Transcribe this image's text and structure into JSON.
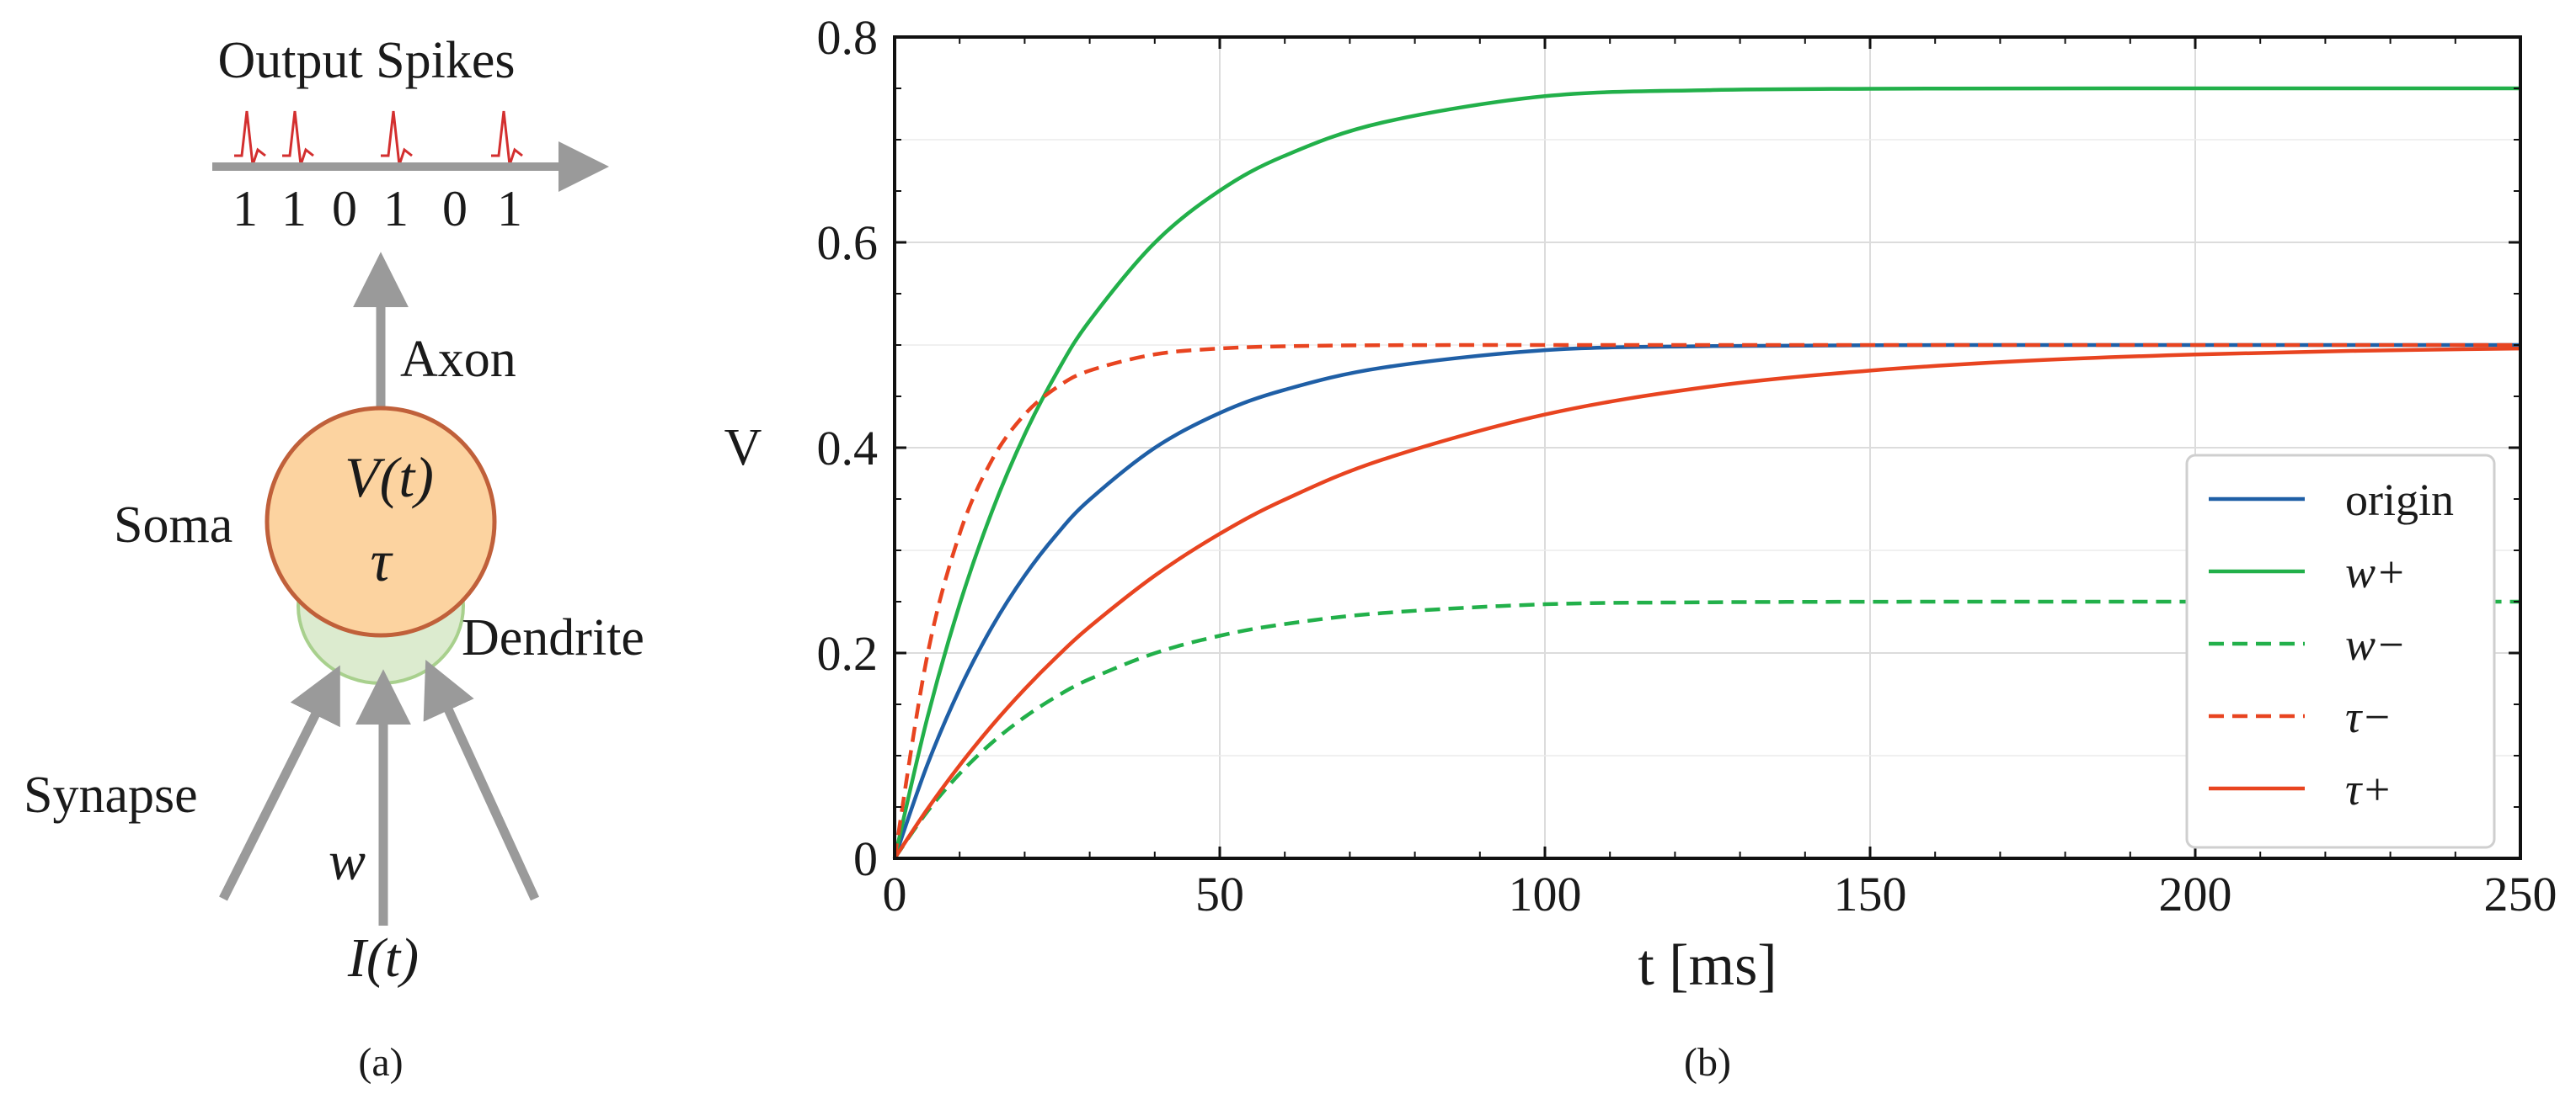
{
  "panel_a": {
    "caption": "(a)",
    "output_label": "Output Spikes",
    "spike_bits": [
      "1",
      "1",
      "0",
      "1",
      "0",
      "1"
    ],
    "axon_label": "Axon",
    "soma_label": "Soma",
    "soma_potential": "V(t)",
    "soma_tau": "τ",
    "dendrite_label": "Dendrite",
    "synapse_label": "Synapse",
    "weight_label": "w",
    "input_label": "I(t)",
    "colors": {
      "spike": "#d32f2f",
      "arrow": "#9a9a9a",
      "soma_fill": "#fcd3a0",
      "soma_stroke": "#c0603a",
      "dendrite_fill": "#dcebcf",
      "dendrite_stroke": "#a8d08d"
    }
  },
  "panel_b": {
    "caption": "(b)"
  },
  "chart_data": {
    "type": "line",
    "xlabel": "t [ms]",
    "ylabel": "V",
    "xlim": [
      0,
      250
    ],
    "ylim": [
      0,
      0.8
    ],
    "xticks": [
      0,
      50,
      100,
      150,
      200,
      250
    ],
    "xtick_labels": [
      "0",
      "50",
      "100",
      "150",
      "200",
      "250"
    ],
    "yticks": [
      0,
      0.2,
      0.4,
      0.6,
      0.8
    ],
    "ytick_labels": [
      "0",
      "0.2",
      "0.4",
      "0.6",
      "0.8"
    ],
    "grid": true,
    "legend_position": "bottom-right",
    "x": [
      0,
      5,
      10,
      15,
      20,
      25,
      30,
      40,
      50,
      60,
      75,
      100,
      125,
      150,
      175,
      200,
      225,
      250
    ],
    "series": [
      {
        "name": "origin",
        "color": "#1f5fa6",
        "dash": "solid",
        "values": [
          0,
          0.0906,
          0.1648,
          0.2256,
          0.2753,
          0.3161,
          0.3494,
          0.3998,
          0.4338,
          0.4564,
          0.4779,
          0.495,
          0.4989,
          0.4998,
          0.5,
          0.5,
          0.5,
          0.5
        ]
      },
      {
        "name": "w+",
        "color": "#22b04a",
        "dash": "solid",
        "values": [
          0,
          0.136,
          0.2473,
          0.3383,
          0.4128,
          0.4738,
          0.5237,
          0.5996,
          0.6504,
          0.6844,
          0.7167,
          0.7424,
          0.7483,
          0.7496,
          0.7499,
          0.75,
          0.75,
          0.75
        ]
      },
      {
        "name": "w−",
        "color": "#22b04a",
        "dash": "dashed",
        "values": [
          0,
          0.0453,
          0.0824,
          0.1128,
          0.1376,
          0.158,
          0.1746,
          0.1998,
          0.2168,
          0.2282,
          0.2389,
          0.2475,
          0.2494,
          0.2499,
          0.25,
          0.25,
          0.25,
          0.25
        ]
      },
      {
        "name": "τ−",
        "color": "#e84420",
        "dash": "dashed",
        "values": [
          0,
          0.1967,
          0.3161,
          0.3884,
          0.4323,
          0.459,
          0.4751,
          0.4909,
          0.4966,
          0.4988,
          0.4998,
          0.5,
          0.5,
          0.5,
          0.5,
          0.5,
          0.5,
          0.5
        ]
      },
      {
        "name": "τ+",
        "color": "#e84420",
        "dash": "solid",
        "values": [
          0,
          0.0476,
          0.0906,
          0.1296,
          0.1648,
          0.1967,
          0.2256,
          0.2753,
          0.3161,
          0.3494,
          0.3883,
          0.4323,
          0.4592,
          0.4751,
          0.4849,
          0.4908,
          0.4944,
          0.4966
        ]
      }
    ]
  }
}
